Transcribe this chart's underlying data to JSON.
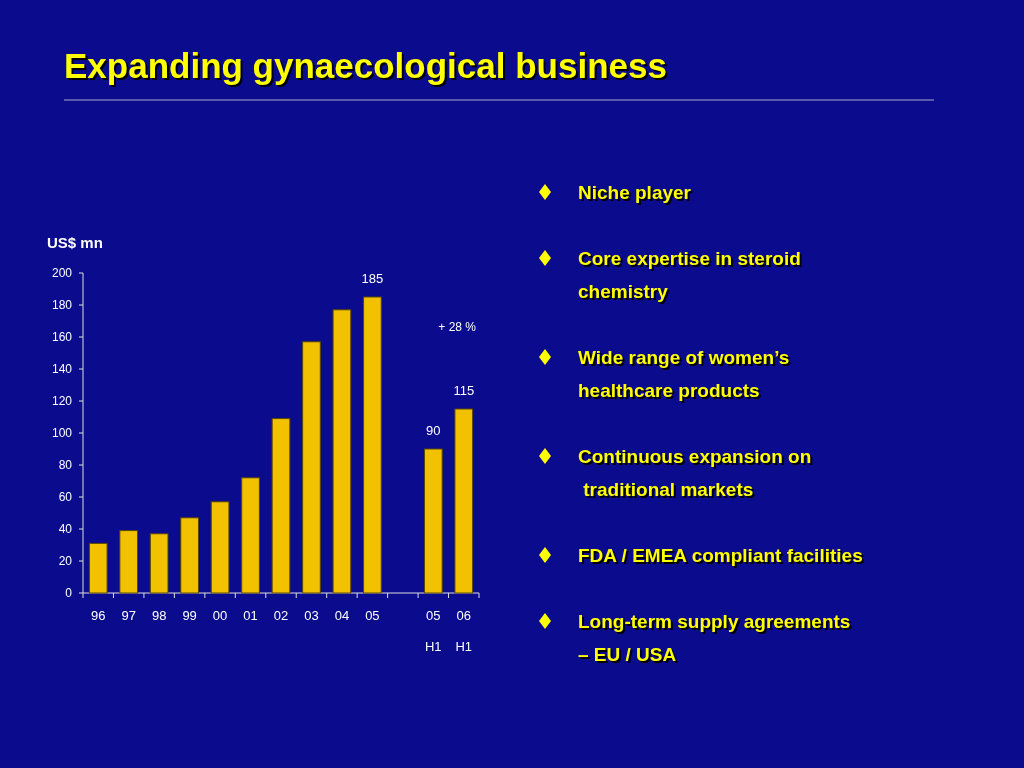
{
  "chart_data": [
    {
      "type": "bar",
      "title": "Expanding gynaecological business",
      "ylabel": "US$ mn",
      "categories": [
        "96",
        "97",
        "98",
        "99",
        "00",
        "01",
        "02",
        "03",
        "04",
        "05",
        null,
        "05\nH1",
        "06\nH1"
      ],
      "values": [
        31,
        39,
        37,
        47,
        57,
        72,
        109,
        157,
        177,
        185,
        null,
        90,
        115
      ],
      "value_labels": [
        null,
        null,
        null,
        null,
        null,
        null,
        null,
        null,
        null,
        "185",
        null,
        "90",
        "115"
      ],
      "color": "#f2c200",
      "ylim": [
        0,
        200
      ],
      "yticks": [
        0,
        20,
        40,
        60,
        80,
        100,
        120,
        140,
        160,
        180,
        200
      ],
      "grid": false,
      "annotations": [
        "+ 28 %"
      ]
    },
    {
      "type": "other",
      "annotations": [
        "Niche player",
        "Core expertise in steroid\nchemistry",
        "Wide range of women’s\nhealthcare products",
        "Continuous expansion on\n traditional markets",
        "FDA / EMEA compliant facilities",
        "Long-term supply agreements\n– EU / USA"
      ]
    }
  ]
}
